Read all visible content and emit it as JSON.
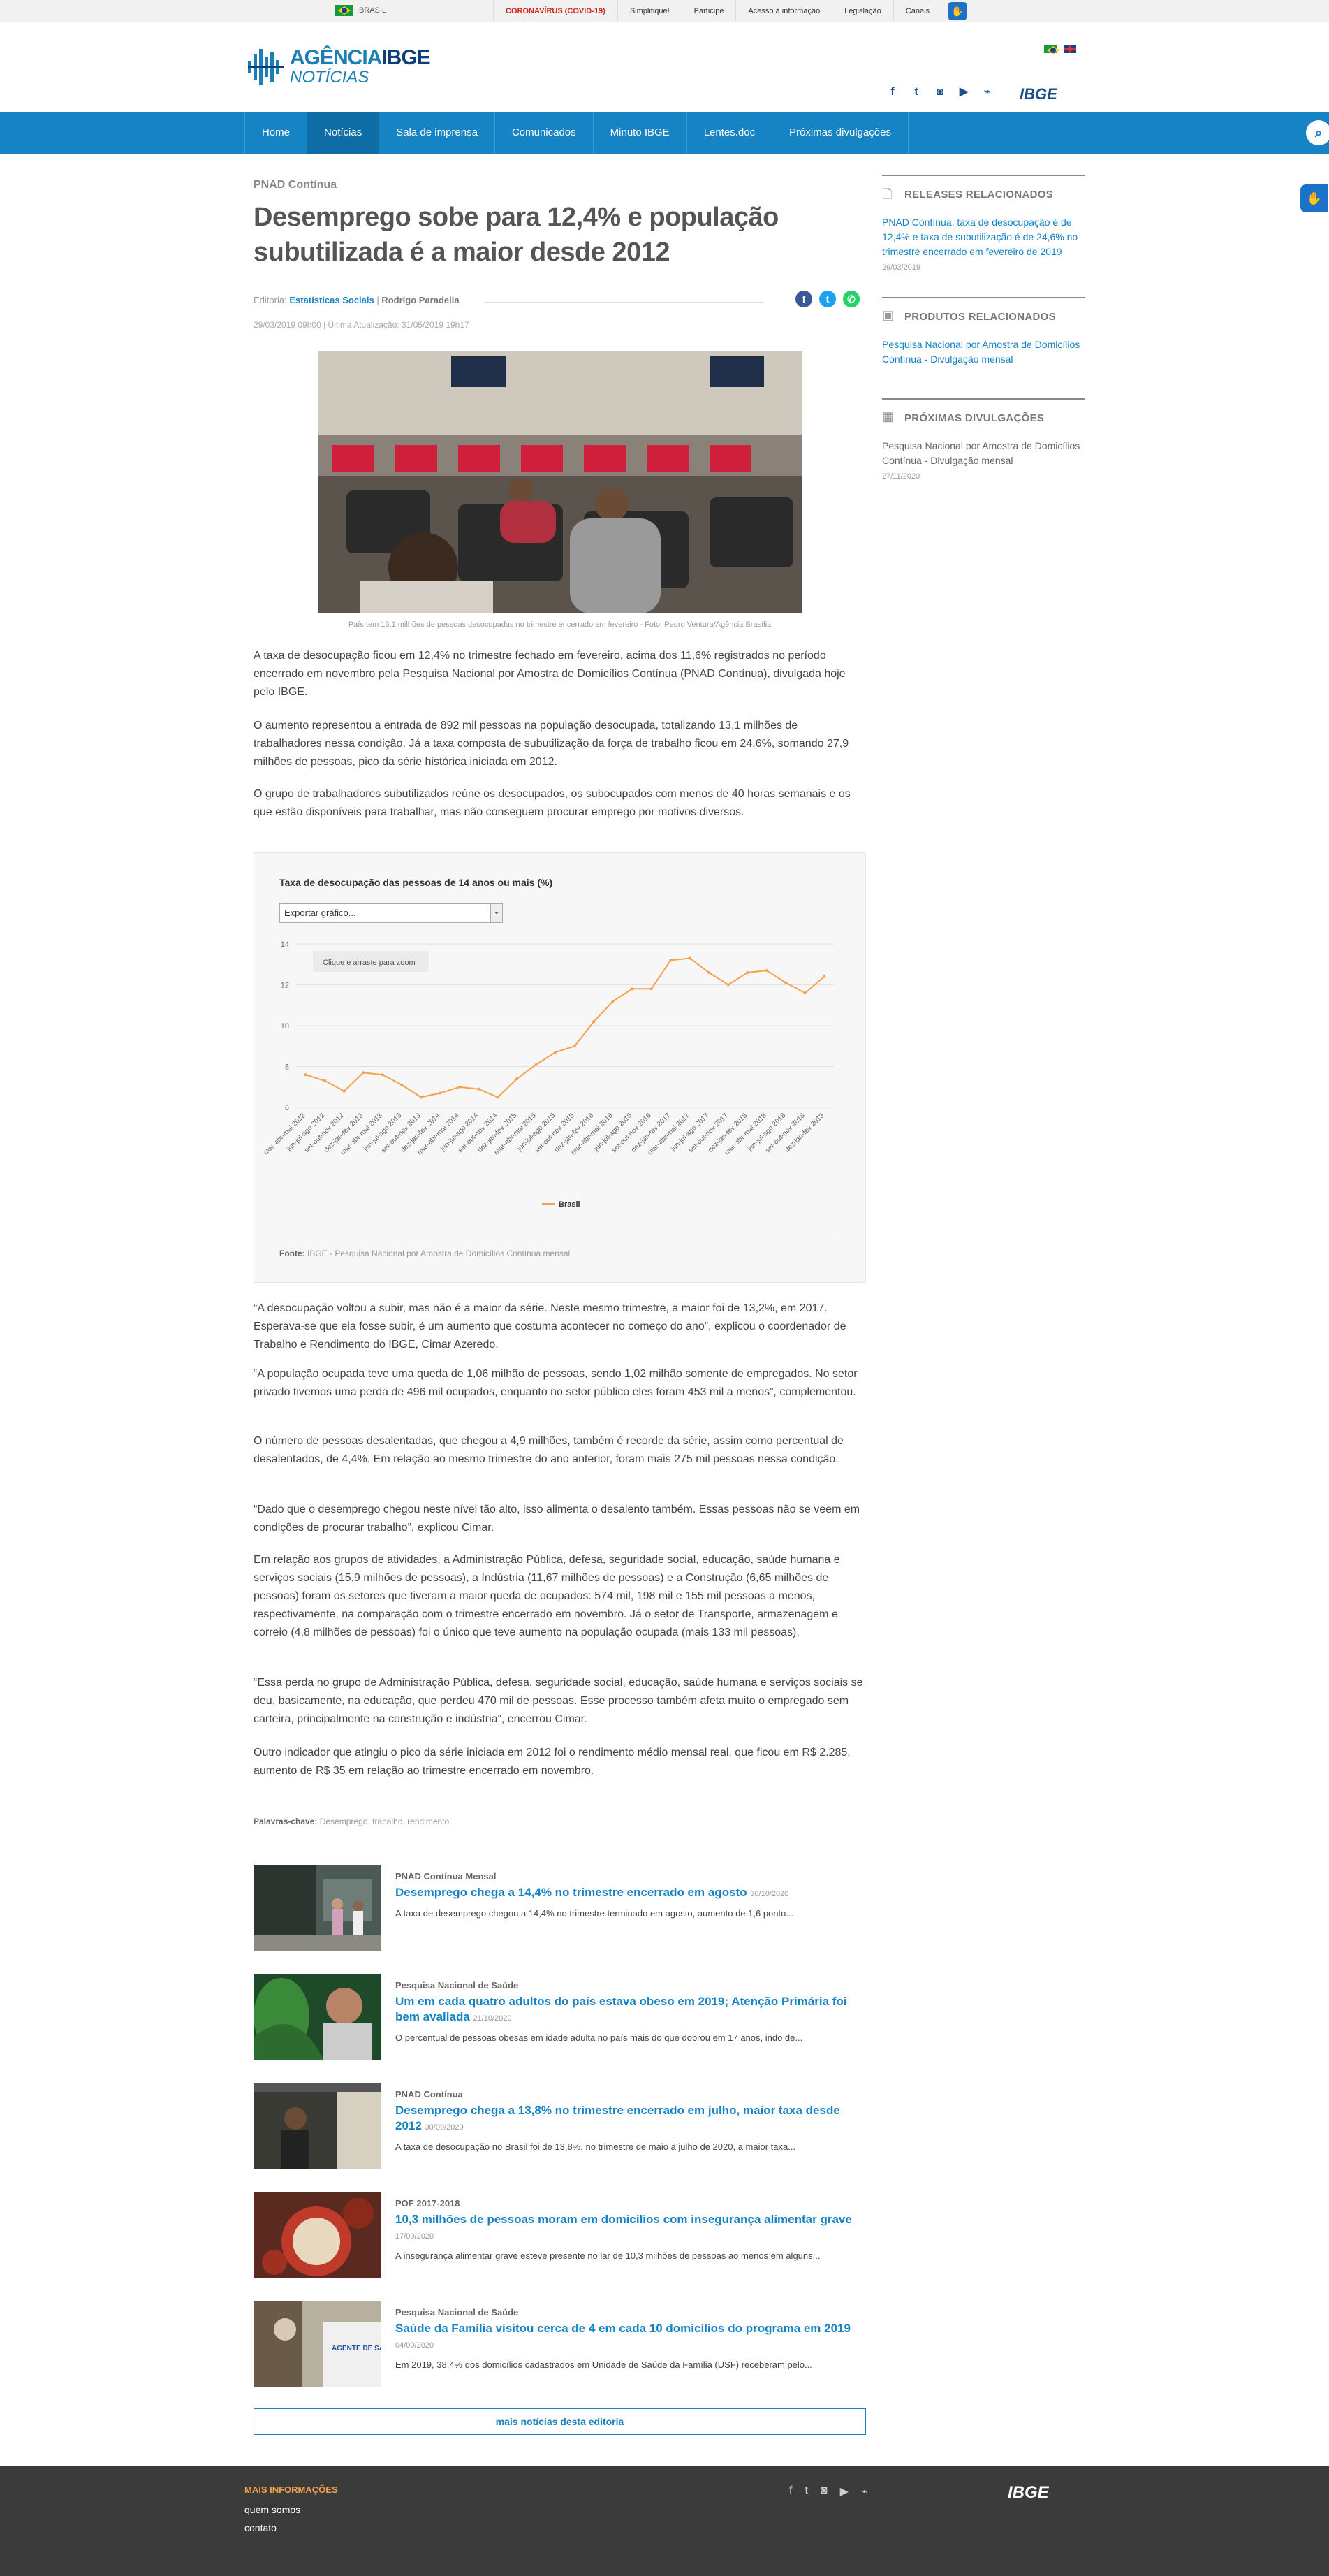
{
  "govbar": {
    "country": "BRASIL",
    "links": [
      "CORONAVÍRUS (COVID-19)",
      "Simplifique!",
      "Participe",
      "Acesso à informação",
      "Legislação",
      "Canais"
    ]
  },
  "header": {
    "logo_line1_a": "AGÊNCIA",
    "logo_line1_b": "IBGE",
    "logo_line2": "NOTÍCIAS",
    "ibge": "IBGE"
  },
  "nav": {
    "items": [
      "Home",
      "Notícias",
      "Sala de imprensa",
      "Comunicados",
      "Minuto IBGE",
      "Lentes.doc",
      "Próximas divulgações"
    ],
    "active": "Notícias"
  },
  "article": {
    "eyebrow": "PNAD Contínua",
    "title": "Desemprego sobe para 12,4% e população subutilizada é a maior desde 2012",
    "editoria_label": "Editoria:",
    "editoria": "Estatísticas Sociais",
    "author": "Rodrigo Paradella",
    "dates": "29/03/2019 09h00  |  Última Atualização: 31/05/2019 19h17",
    "caption": "País tem 13,1 milhões de pessoas desocupadas no trimestre encerrado em fevereiro - Foto: Pedro Ventura/Agência Brasília",
    "paragraphs": [
      "A taxa de desocupação ficou em 12,4% no trimestre fechado em fevereiro, acima dos 11,6% registrados no período encerrado em novembro pela Pesquisa Nacional por Amostra de Domicílios Contínua (PNAD Contínua), divulgada hoje pelo IBGE.",
      "O aumento representou a entrada de 892 mil pessoas na população desocupada, totalizando 13,1 milhões de trabalhadores nessa condição. Já a taxa composta de subutilização da força de trabalho ficou em 24,6%, somando 27,9 milhões de pessoas, pico da série histórica iniciada em 2012.",
      "O grupo de trabalhadores subutilizados reúne os desocupados, os subocupados com menos de 40 horas semanais e os que estão disponíveis para trabalhar, mas não conseguem procurar emprego por motivos diversos.",
      "“A desocupação voltou a subir, mas não é a maior da série. Neste mesmo trimestre, a maior foi de 13,2%, em 2017. Esperava-se que ela fosse subir, é um aumento que costuma acontecer no começo do ano”, explicou o coordenador de Trabalho e Rendimento do IBGE, Cimar Azeredo.",
      "“A população ocupada teve uma queda de 1,06 milhão de pessoas, sendo 1,02 milhão somente de empregados. No setor privado tivemos uma perda de 496 mil ocupados, enquanto no setor público eles foram 453 mil a menos”, complementou.",
      "O número de pessoas desalentadas, que chegou a 4,9 milhões, também é recorde da série, assim como percentual de desalentados, de 4,4%. Em relação ao mesmo trimestre do ano anterior, foram mais 275 mil pessoas nessa condição.",
      "“Dado que o desemprego chegou neste nível tão alto, isso alimenta o desalento também. Essas pessoas não se veem em condições de procurar trabalho”, explicou Cimar.",
      "Em relação aos grupos de atividades, a Administração Pública, defesa, seguridade social, educação, saúde humana e serviços sociais (15,9 milhões de pessoas), a Indústria (11,67 milhões de pessoas) e a Construção (6,65 milhões de pessoas) foram os setores que tiveram a maior queda de ocupados: 574 mil, 198 mil e 155 mil pessoas a menos, respectivamente, na comparação com o trimestre encerrado em novembro. Já o setor de Transporte, armazenagem e correio (4,8 milhões de pessoas) foi o único que teve aumento na população ocupada (mais 133 mil pessoas).",
      "“Essa perda no grupo de Administração Pública, defesa, seguridade social, educação, saúde humana e serviços sociais se deu, basicamente, na educação, que perdeu 470 mil de pessoas. Esse processo também afeta muito o empregado sem carteira, principalmente na construção e indústria”, encerrou Cimar.",
      "Outro indicador que atingiu o pico da série iniciada em 2012 foi o rendimento médio mensal real, que ficou em R$ 2.285, aumento de R$ 35 em relação ao trimestre encerrado em novembro."
    ],
    "keywords_label": "Palavras-chave:",
    "keywords": "Desemprego, trabalho, rendimento."
  },
  "chart_box": {
    "title": "Taxa de desocupação das pessoas de 14 anos ou mais (%)",
    "export_select": "Exportar gráfico...",
    "zoom_hint": "Clique e arraste para zoom",
    "source_label": "Fonte:",
    "source": "IBGE - Pesquisa Nacional por Amostra de Domicílios Contínua mensal"
  },
  "chart_data": {
    "type": "line",
    "title": "Taxa de desocupação das pessoas de 14 anos ou mais (%)",
    "ylim": [
      6,
      14
    ],
    "yticks": [
      6,
      8,
      10,
      12,
      14
    ],
    "grid": true,
    "legend_position": "bottom",
    "categories": [
      "mar-abr-mai 2012",
      "jun-jul-ago 2012",
      "set-out-nov 2012",
      "dez-jan-fev 2013",
      "mar-abr-mai 2013",
      "jun-jul-ago 2013",
      "set-out-nov 2013",
      "dez-jan-fev 2014",
      "mar-abr-mai 2014",
      "jun-jul-ago 2014",
      "set-out-nov 2014",
      "dez-jan-fev 2015",
      "mar-abr-mai 2015",
      "jun-jul-ago 2015",
      "set-out-nov 2015",
      "dez-jan-fev 2016",
      "mar-abr-mai 2016",
      "jun-jul-ago 2016",
      "set-out-nov 2016",
      "dez-jan-fev 2017",
      "mar-abr-mai 2017",
      "jun-jul-ago 2017",
      "set-out-nov 2017",
      "dez-jan-fev 2018",
      "mar-abr-mai 2018",
      "jun-jul-ago 2018",
      "set-out-nov 2018",
      "dez-jan-fev 2019"
    ],
    "series": [
      {
        "name": "Brasil",
        "color": "#f4a24a",
        "values": [
          7.6,
          7.3,
          6.8,
          7.7,
          7.6,
          7.1,
          6.5,
          6.7,
          7.0,
          6.9,
          6.5,
          7.4,
          8.1,
          8.7,
          9.0,
          10.2,
          11.2,
          11.8,
          11.8,
          13.2,
          13.3,
          12.6,
          12.0,
          12.6,
          12.7,
          12.1,
          11.6,
          12.4
        ]
      }
    ]
  },
  "related": [
    {
      "category": "PNAD Contínua Mensal",
      "title": "Desemprego chega a 14,4% no trimestre encerrado em agosto",
      "date": "30/10/2020",
      "desc": "A taxa de desemprego chegou a 14,4% no trimestre terminado em agosto, aumento de 1,6 ponto..."
    },
    {
      "category": "Pesquisa Nacional de Saúde",
      "title": "Um em cada quatro adultos do país estava obeso em 2019; Atenção Primária foi bem avaliada",
      "date": "21/10/2020",
      "desc": "O percentual de pessoas obesas em idade adulta no país mais do que dobrou em 17 anos, indo de..."
    },
    {
      "category": "PNAD Contínua",
      "title": "Desemprego chega a 13,8% no trimestre encerrado em julho, maior taxa desde 2012",
      "date": "30/09/2020",
      "desc": "A taxa de desocupação no Brasil foi de 13,8%, no trimestre de maio a julho de 2020, a maior taxa..."
    },
    {
      "category": "POF 2017-2018",
      "title": "10,3 milhões de pessoas moram em domicílios com insegurança alimentar grave",
      "date": "17/09/2020",
      "desc": "A insegurança alimentar grave esteve presente no lar de 10,3 milhões de pessoas ao menos em alguns..."
    },
    {
      "category": "Pesquisa Nacional de Saúde",
      "title": "Saúde da Família visitou cerca de 4 em cada 10 domicílios do programa em 2019",
      "date": "04/09/2020",
      "desc": "Em 2019, 38,4% dos domicílios cadastrados em Unidade de Saúde da Família (USF) receberam pelo..."
    }
  ],
  "thumb_texts": [
    "AGENTE DE SAÚDE"
  ],
  "more_button": "mais notícias desta editoria",
  "sidebar": {
    "releases_head": "RELEASES RELACIONADOS",
    "releases_link": "PNAD Contínua: taxa de desocupação é de 12,4% e taxa de subutilização é de 24,6% no trimestre encerrado em fevereiro de 2019",
    "releases_date": "29/03/2019",
    "produtos_head": "PRODUTOS RELACIONADOS",
    "produtos_link": "Pesquisa Nacional por Amostra de Domicílios Contínua - Divulgação mensal",
    "proximas_head": "PRÓXIMAS DIVULGAÇÕES",
    "proximas_text": "Pesquisa Nacional por Amostra de Domicílios Contínua - Divulgação mensal",
    "proximas_date": "27/11/2020"
  },
  "footer": {
    "head": "MAIS INFORMAÇÕES",
    "links": [
      "quem somos",
      "contato"
    ],
    "ibge": "IBGE"
  },
  "colors": {
    "brand_blue": "#1583c4",
    "nav_active": "#0e6da5",
    "footer_bg": "#3b3b3b",
    "footer_accent": "#f0a14c",
    "series": "#f4a24a"
  }
}
